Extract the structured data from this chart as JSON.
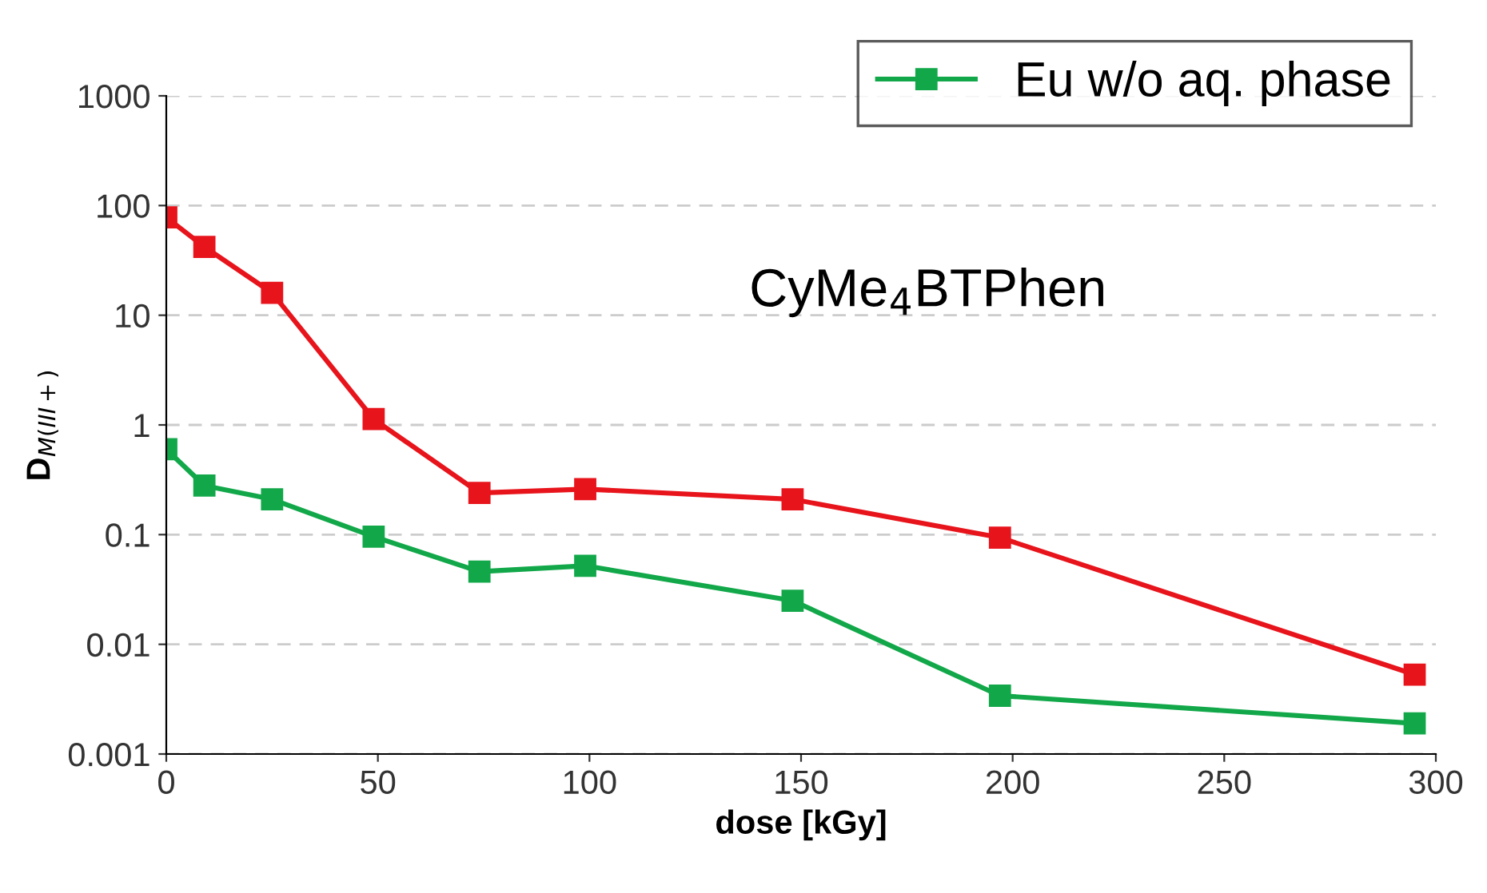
{
  "chart_data": {
    "type": "line",
    "xlabel": "dose [kGy]",
    "ylabel": "D$_{M(III+)}$",
    "x": [
      0,
      9,
      25,
      49,
      74,
      99,
      148,
      197,
      295
    ],
    "series": [
      {
        "color": "#e8141c",
        "values": [
          78,
          42,
          16,
          1.13,
          0.24,
          0.26,
          0.21,
          0.094,
          0.0053
        ]
      },
      {
        "name": "Eu w/o aq. phase",
        "color": "#12a84a",
        "values": [
          0.6,
          0.28,
          0.21,
          0.096,
          0.046,
          0.052,
          0.025,
          0.0034,
          0.0019
        ]
      }
    ],
    "log": "y",
    "xlim": [
      0,
      300
    ],
    "xticks": [
      0,
      50,
      100,
      150,
      200,
      250,
      300
    ],
    "ylim": [
      0.001,
      1000
    ],
    "yticks": [
      0.001,
      0.01,
      0.1,
      1,
      10,
      100,
      1000
    ],
    "grid": "y",
    "legend": "top right",
    "marker": "square",
    "line_style": "solid",
    "annotations": [
      "CyMe$_{4}$BTPhen"
    ]
  }
}
